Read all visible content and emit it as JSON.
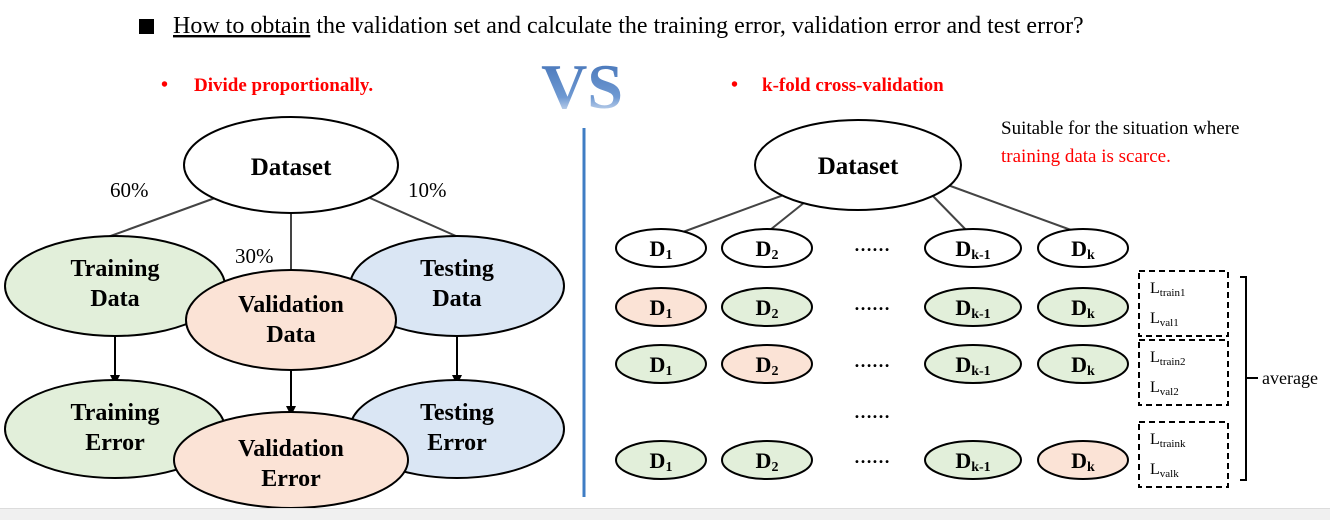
{
  "header": {
    "question_link": "How to obtain",
    "question_rest": " the validation set and calculate the training error, validation error and test error?"
  },
  "left": {
    "bullet": "•",
    "heading": "Divide proportionally.",
    "dataset": "Dataset",
    "pct_train": "60%",
    "pct_val": "30%",
    "pct_test": "10%",
    "training_data": [
      "Training",
      "Data"
    ],
    "validation_data": [
      "Validation",
      "Data"
    ],
    "testing_data": [
      "Testing",
      "Data"
    ],
    "training_error": [
      "Training",
      "Error"
    ],
    "validation_error": [
      "Validation",
      "Error"
    ],
    "testing_error": [
      "Testing",
      "Error"
    ]
  },
  "vs": "VS",
  "right": {
    "bullet": "•",
    "heading": "k-fold cross-validation",
    "note_line1": "Suitable for the situation where",
    "note_line2": "training data is scarce.",
    "dataset": "Dataset",
    "ellipsis": "……",
    "folds": [
      {
        "main": "D",
        "sub": "1"
      },
      {
        "main": "D",
        "sub": "2"
      },
      {
        "main": "D",
        "sub": "k-1"
      },
      {
        "main": "D",
        "sub": "k"
      }
    ],
    "losses": [
      {
        "train": "train1",
        "val": "val1"
      },
      {
        "train": "train2",
        "val": "val2"
      },
      {
        "train": "traink",
        "val": "valk"
      }
    ],
    "loss_letter": "L",
    "average": "average"
  },
  "colors": {
    "green": "#e2efda",
    "orange": "#fbe3d6",
    "blue": "#dae6f4",
    "red": "#ff0000",
    "blue_vs": "#5b87c5",
    "divider": "#3f7dc4"
  }
}
